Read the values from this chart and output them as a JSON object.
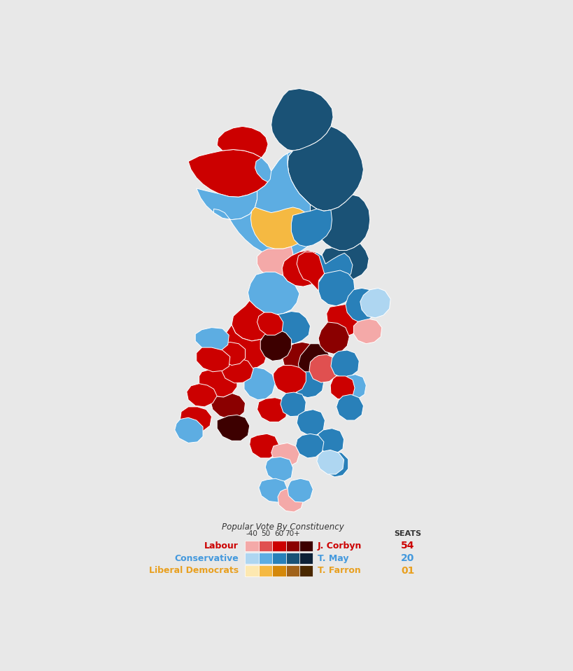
{
  "background_color": "#e8e8e8",
  "legend": {
    "subtitle": "Popular Vote By Constituency",
    "thresholds": [
      "-40",
      "50",
      "60",
      "70+"
    ],
    "parties": [
      {
        "name": "Labour",
        "name_color": "#cc0000",
        "leader": "J. Corbyn",
        "leader_color": "#cc0000",
        "seats": "54",
        "seats_color": "#cc0000",
        "colors": [
          "#f4a9a8",
          "#e05050",
          "#cc0000",
          "#8b0000",
          "#3d0000"
        ]
      },
      {
        "name": "Conservative",
        "name_color": "#4499dd",
        "leader": "T. May",
        "leader_color": "#4499dd",
        "seats": "20",
        "seats_color": "#4499dd",
        "colors": [
          "#aed6f1",
          "#5dade2",
          "#2980b9",
          "#1a5276",
          "#0d2137"
        ]
      },
      {
        "name": "Liberal Democrats",
        "name_color": "#e8a020",
        "leader": "T. Farron",
        "leader_color": "#e8a020",
        "seats": "01",
        "seats_color": "#e8a020",
        "colors": [
          "#fde8b0",
          "#f5b942",
          "#d4880a",
          "#a0621a",
          "#4a2800"
        ]
      }
    ],
    "seats_label": "SEATS"
  }
}
